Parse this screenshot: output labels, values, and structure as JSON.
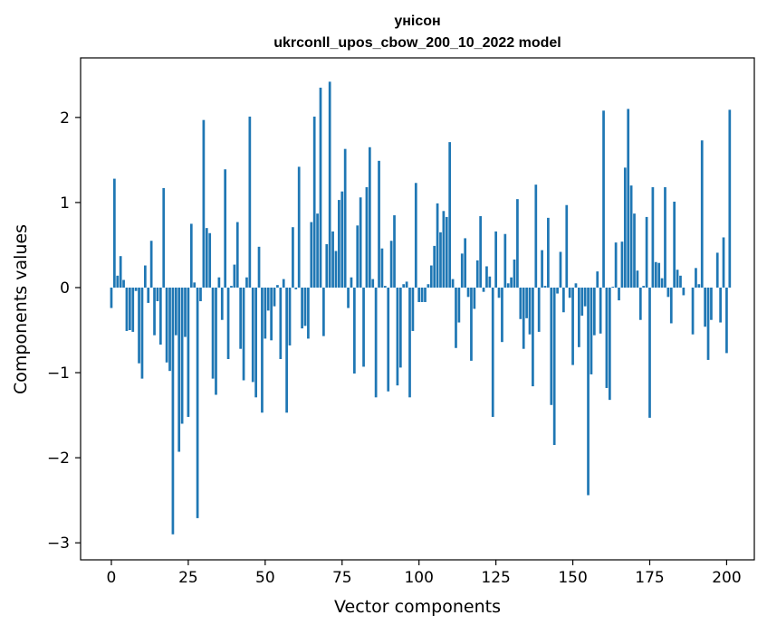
{
  "chart_data": {
    "type": "bar",
    "title": "унісон",
    "subtitle": "ukrconll_upos_cbow_200_10_2022 model",
    "xlabel": "Vector components",
    "ylabel": "Components values",
    "xlim": [
      -10,
      209
    ],
    "ylim": [
      -3.2,
      2.7
    ],
    "xticks": [
      0,
      25,
      50,
      75,
      100,
      125,
      150,
      175,
      200
    ],
    "yticks": [
      -3,
      -2,
      -1,
      0,
      1,
      2
    ],
    "ytick_labels": [
      "−3",
      "−2",
      "−1",
      "0",
      "1",
      "2"
    ],
    "bar_color": "#1f77b4",
    "grid": false,
    "values": [
      -0.24,
      1.28,
      0.14,
      0.37,
      0.09,
      -0.51,
      -0.5,
      -0.52,
      -0.04,
      -0.89,
      -1.07,
      0.26,
      -0.18,
      0.55,
      -0.56,
      -0.16,
      -0.67,
      1.17,
      -0.88,
      -0.98,
      -2.9,
      -0.56,
      -1.93,
      -1.6,
      -0.58,
      -1.52,
      0.75,
      0.06,
      -2.71,
      -0.16,
      1.97,
      0.7,
      0.64,
      -1.07,
      -1.26,
      0.12,
      -0.38,
      1.39,
      -0.84,
      0.02,
      0.27,
      0.77,
      -0.72,
      -1.09,
      0.12,
      2.01,
      -1.11,
      -1.29,
      0.48,
      -1.47,
      -0.6,
      -0.27,
      -0.62,
      -0.22,
      0.03,
      -0.84,
      0.1,
      -1.47,
      -0.68,
      0.71,
      -0.02,
      1.42,
      -0.48,
      -0.45,
      -0.6,
      0.77,
      2.01,
      0.87,
      2.35,
      -0.57,
      0.51,
      2.42,
      0.66,
      0.43,
      1.03,
      1.13,
      1.63,
      -0.24,
      0.12,
      -1.01,
      0.73,
      1.06,
      -0.93,
      1.18,
      1.65,
      0.1,
      -1.29,
      1.49,
      0.46,
      0.02,
      -1.22,
      0.55,
      0.85,
      -1.15,
      -0.94,
      0.04,
      0.07,
      -1.29,
      -0.51,
      1.23,
      -0.17,
      -0.17,
      -0.17,
      0.04,
      0.26,
      0.49,
      0.99,
      0.65,
      0.9,
      0.83,
      1.71,
      0.1,
      -0.71,
      -0.41,
      0.4,
      0.58,
      -0.11,
      -0.86,
      -0.25,
      0.32,
      0.84,
      -0.05,
      0.25,
      0.13,
      -1.52,
      0.66,
      -0.12,
      -0.64,
      0.63,
      0.05,
      0.12,
      0.33,
      1.04,
      -0.37,
      -0.72,
      -0.36,
      -0.55,
      -1.16,
      1.21,
      -0.52,
      0.44,
      0.02,
      0.82,
      -1.38,
      -1.85,
      -0.07,
      0.42,
      -0.29,
      0.97,
      -0.12,
      -0.91,
      0.05,
      -0.7,
      -0.33,
      -0.22,
      -2.44,
      -1.02,
      -0.56,
      0.19,
      -0.54,
      2.08,
      -1.18,
      -1.32,
      0.01,
      0.53,
      -0.15,
      0.54,
      1.41,
      2.1,
      1.2,
      0.87,
      0.2,
      -0.38,
      0.02,
      0.83,
      -1.53,
      1.18,
      0.3,
      0.29,
      0.11,
      1.18,
      -0.11,
      -0.42,
      1.01,
      0.21,
      0.14,
      -0.09,
      0.0,
      0.0,
      -0.55,
      0.23,
      0.04,
      1.73,
      -0.46,
      -0.85,
      -0.38,
      0.0,
      0.41,
      -0.41,
      0.59,
      -0.77,
      2.09
    ]
  }
}
